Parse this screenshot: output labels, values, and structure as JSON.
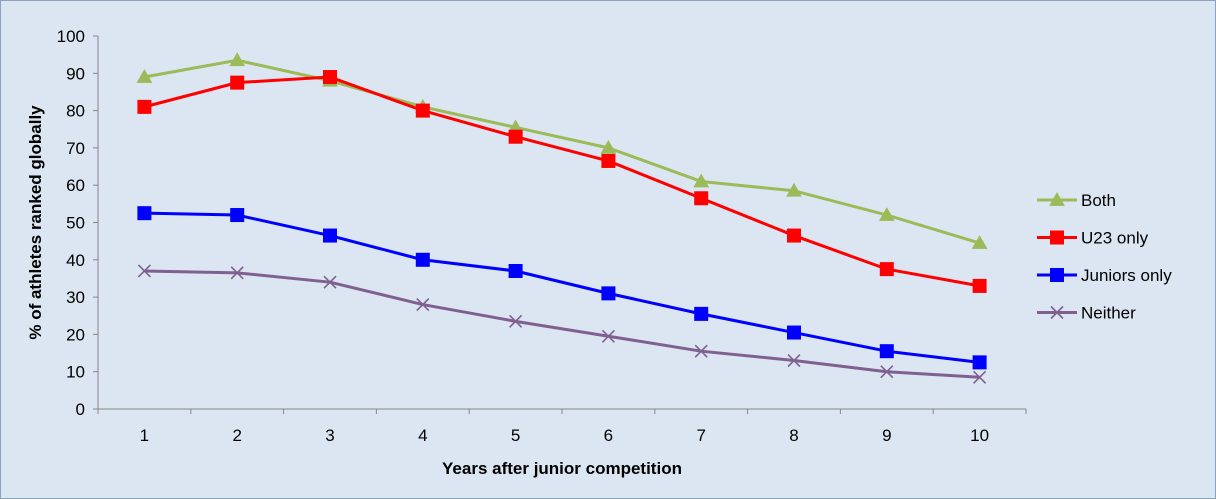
{
  "chart_data": {
    "type": "line",
    "title": "",
    "xlabel": "Years after junior competition",
    "ylabel": "% of athletes ranked globally",
    "x": [
      1,
      2,
      3,
      4,
      5,
      6,
      7,
      8,
      9,
      10
    ],
    "ylim": [
      0,
      100
    ],
    "yticks": [
      0,
      10,
      20,
      30,
      40,
      50,
      60,
      70,
      80,
      90,
      100
    ],
    "grid": false,
    "legend_position": "right",
    "series": [
      {
        "name": "Both",
        "color": "#9bbb59",
        "marker": "triangle",
        "values": [
          89,
          93.5,
          88,
          81,
          75.5,
          70,
          61,
          58.5,
          52,
          44.5
        ]
      },
      {
        "name": "U23 only",
        "color": "#ff0000",
        "marker": "square",
        "values": [
          81,
          87.5,
          89,
          80,
          73,
          66.5,
          56.5,
          46.5,
          37.5,
          33
        ]
      },
      {
        "name": "Juniors only",
        "color": "#0000ff",
        "marker": "square",
        "values": [
          52.5,
          52,
          46.5,
          40,
          37,
          31,
          25.5,
          20.5,
          15.5,
          12.5
        ]
      },
      {
        "name": "Neither",
        "color": "#7f6090",
        "marker": "x",
        "values": [
          37,
          36.5,
          34,
          28,
          23.5,
          19.5,
          15.5,
          13,
          10,
          8.5
        ]
      }
    ]
  }
}
